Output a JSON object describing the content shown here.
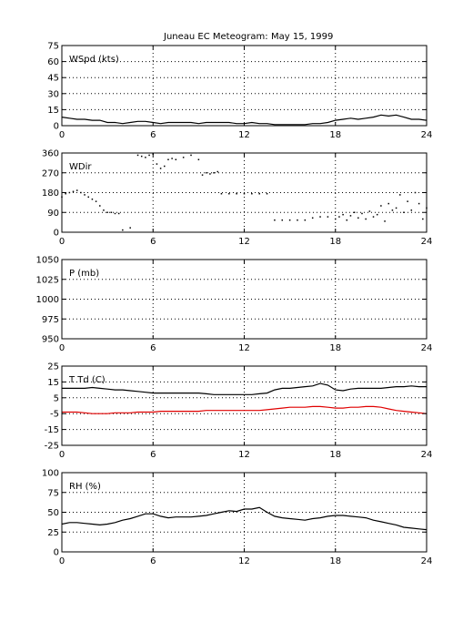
{
  "title": "Juneau EC Meteogram:",
  "date": "May 15, 1999",
  "chart_data": [
    {
      "type": "line",
      "panel_label": "WSpd (kts)",
      "xlim": [
        0,
        24
      ],
      "xticks": [
        0,
        6,
        12,
        18,
        24
      ],
      "ylim": [
        0,
        75
      ],
      "yticks": [
        0,
        15,
        30,
        45,
        60,
        75
      ],
      "grid": true,
      "series": [
        {
          "color": "#000000",
          "style": "line",
          "x": [
            0,
            0.5,
            1,
            1.5,
            2,
            2.5,
            3,
            3.5,
            4,
            4.5,
            5,
            5.5,
            6,
            6.5,
            7,
            7.5,
            8,
            8.5,
            9,
            9.5,
            10,
            10.5,
            11,
            11.5,
            12,
            12.5,
            13,
            13.5,
            14,
            14.5,
            15,
            15.5,
            16,
            16.5,
            17,
            17.5,
            18,
            18.5,
            19,
            19.5,
            20,
            20.5,
            21,
            21.5,
            22,
            22.5,
            23,
            23.5,
            24
          ],
          "y": [
            8,
            7,
            6,
            6,
            5,
            5,
            3,
            3,
            2,
            3,
            4,
            4,
            3,
            2,
            3,
            3,
            3,
            3,
            2,
            3,
            3,
            3,
            3,
            2,
            2,
            3,
            2,
            2,
            1,
            1,
            1,
            1,
            1,
            2,
            2,
            3,
            5,
            6,
            7,
            6,
            7,
            8,
            10,
            9,
            10,
            8,
            6,
            6,
            5
          ]
        }
      ]
    },
    {
      "type": "scatter",
      "panel_label": "WDir",
      "xlim": [
        0,
        24
      ],
      "xticks": [
        0,
        6,
        12,
        18,
        24
      ],
      "ylim": [
        0,
        360
      ],
      "yticks": [
        0,
        90,
        180,
        270,
        360
      ],
      "grid": true,
      "series": [
        {
          "color": "#000000",
          "style": "points",
          "x": [
            0,
            0.25,
            0.5,
            0.75,
            1,
            1.25,
            1.5,
            1.75,
            2,
            2.25,
            2.5,
            2.75,
            3,
            3.25,
            3.5,
            3.75,
            4,
            4.5,
            5,
            5.25,
            5.5,
            5.75,
            6,
            6.25,
            6.5,
            6.75,
            7,
            7.25,
            7.5,
            8,
            8.5,
            9,
            9.25,
            9.5,
            9.75,
            10,
            10.25,
            10.5,
            11,
            11.5,
            12,
            12.5,
            13,
            13.5,
            14,
            14.5,
            15,
            15.5,
            16,
            16.5,
            17,
            17.5,
            18,
            18.25,
            18.5,
            18.75,
            19,
            19.25,
            19.5,
            19.75,
            20,
            20.25,
            20.5,
            20.75,
            21,
            21.25,
            21.5,
            21.75,
            22,
            22.25,
            22.5,
            22.75,
            23,
            23.25,
            23.5,
            23.75,
            24
          ],
          "y": [
            160,
            175,
            180,
            185,
            190,
            180,
            170,
            160,
            150,
            140,
            120,
            100,
            90,
            90,
            85,
            85,
            10,
            20,
            350,
            345,
            340,
            350,
            355,
            310,
            290,
            300,
            330,
            335,
            330,
            340,
            350,
            330,
            260,
            270,
            265,
            270,
            275,
            175,
            175,
            175,
            175,
            175,
            175,
            175,
            55,
            55,
            55,
            55,
            55,
            65,
            70,
            70,
            60,
            70,
            80,
            55,
            75,
            90,
            65,
            85,
            60,
            95,
            70,
            80,
            120,
            50,
            130,
            100,
            110,
            170,
            90,
            140,
            100,
            180,
            130,
            60,
            110
          ]
        }
      ]
    },
    {
      "type": "line",
      "panel_label": "P (mb)",
      "xlim": [
        0,
        24
      ],
      "xticks": [
        0,
        6,
        12,
        18,
        24
      ],
      "ylim": [
        950,
        1050
      ],
      "yticks": [
        950,
        975,
        1000,
        1025,
        1050
      ],
      "grid": true,
      "series": []
    },
    {
      "type": "line",
      "panel_label": "T Td (C)",
      "xlim": [
        0,
        24
      ],
      "xticks": [
        0,
        6,
        12,
        18,
        24
      ],
      "ylim": [
        -25,
        25
      ],
      "yticks": [
        -25,
        -15,
        -5,
        5,
        15,
        25
      ],
      "grid": true,
      "series": [
        {
          "color": "#000000",
          "style": "line",
          "x": [
            0,
            0.5,
            1,
            1.5,
            2,
            2.5,
            3,
            3.5,
            4,
            4.5,
            5,
            5.5,
            6,
            6.5,
            7,
            7.5,
            8,
            8.5,
            9,
            9.5,
            10,
            10.5,
            11,
            11.5,
            12,
            12.5,
            13,
            13.5,
            14,
            14.5,
            15,
            15.5,
            16,
            16.5,
            17,
            17.5,
            18,
            18.5,
            19,
            19.5,
            20,
            20.5,
            21,
            21.5,
            22,
            22.5,
            23,
            23.5,
            24
          ],
          "y": [
            11,
            11,
            11,
            11,
            11.5,
            11,
            10.5,
            10,
            10,
            9.5,
            9,
            8.5,
            8,
            8,
            8,
            8,
            8,
            8,
            8,
            7.5,
            7,
            7,
            7,
            7,
            7,
            7,
            7.5,
            8,
            10,
            11,
            11,
            11.5,
            12,
            12.5,
            14,
            13,
            10,
            9.5,
            10.5,
            11,
            11,
            11,
            11,
            11.5,
            12,
            12,
            12.5,
            12,
            12
          ]
        },
        {
          "color": "#e00000",
          "style": "line",
          "x": [
            0,
            0.5,
            1,
            1.5,
            2,
            2.5,
            3,
            3.5,
            4,
            4.5,
            5,
            5.5,
            6,
            6.5,
            7,
            7.5,
            8,
            8.5,
            9,
            9.5,
            10,
            10.5,
            11,
            11.5,
            12,
            12.5,
            13,
            13.5,
            14,
            14.5,
            15,
            15.5,
            16,
            16.5,
            17,
            17.5,
            18,
            18.5,
            19,
            19.5,
            20,
            20.5,
            21,
            21.5,
            22,
            22.5,
            23,
            23.5,
            24
          ],
          "y": [
            -4,
            -4,
            -4,
            -4.5,
            -5,
            -5,
            -5,
            -4.5,
            -4.5,
            -4.5,
            -4,
            -4,
            -4,
            -3.5,
            -3.5,
            -3.5,
            -3.5,
            -3.5,
            -3.5,
            -3,
            -3,
            -3,
            -3,
            -3,
            -3,
            -3,
            -3,
            -2.5,
            -2,
            -1.5,
            -1,
            -1,
            -1,
            -0.5,
            -0.5,
            -1,
            -1.5,
            -1.5,
            -1,
            -1,
            -0.5,
            -0.5,
            -1,
            -2,
            -3,
            -3.5,
            -4,
            -4.5,
            -5
          ]
        }
      ]
    },
    {
      "type": "line",
      "panel_label": "RH (%)",
      "xlim": [
        0,
        24
      ],
      "xticks": [
        0,
        6,
        12,
        18,
        24
      ],
      "ylim": [
        0,
        100
      ],
      "yticks": [
        0,
        25,
        50,
        75,
        100
      ],
      "grid": true,
      "series": [
        {
          "color": "#000000",
          "style": "line",
          "x": [
            0,
            0.5,
            1,
            1.5,
            2,
            2.5,
            3,
            3.5,
            4,
            4.5,
            5,
            5.5,
            6,
            6.5,
            7,
            7.5,
            8,
            8.5,
            9,
            9.5,
            10,
            10.5,
            11,
            11.5,
            12,
            12.5,
            13,
            13.5,
            14,
            14.5,
            15,
            15.5,
            16,
            16.5,
            17,
            17.5,
            18,
            18.5,
            19,
            19.5,
            20,
            20.5,
            21,
            21.5,
            22,
            22.5,
            23,
            23.5,
            24
          ],
          "y": [
            35,
            37,
            37,
            36,
            35,
            34,
            35,
            37,
            40,
            42,
            45,
            48,
            48,
            45,
            43,
            44,
            44,
            44,
            45,
            46,
            48,
            50,
            52,
            51,
            54,
            54,
            56,
            50,
            45,
            43,
            42,
            41,
            40,
            42,
            43,
            45,
            46,
            46,
            45,
            44,
            43,
            40,
            38,
            36,
            34,
            31,
            30,
            29,
            28
          ]
        }
      ]
    }
  ]
}
